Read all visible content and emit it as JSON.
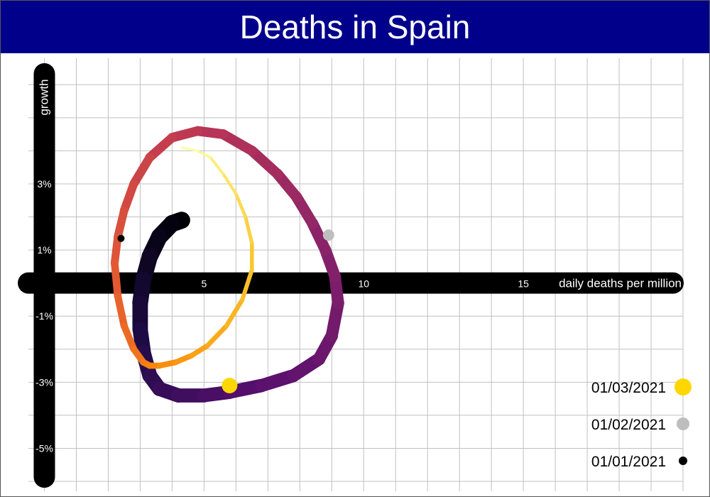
{
  "chart_data": {
    "type": "line",
    "title": "Deaths in Spain",
    "xlabel": "daily deaths per million",
    "ylabel": "growth",
    "xlim": [
      -0.5,
      20
    ],
    "ylim": [
      -6.3,
      6.8
    ],
    "x_ticks": [
      5,
      10,
      15
    ],
    "x_tick_labels": [
      "5",
      "10",
      "15"
    ],
    "y_ticks": [
      3,
      1,
      -1,
      -3,
      -5
    ],
    "y_tick_labels": [
      "3%",
      "1%",
      "-1%",
      "-3%",
      "-5%"
    ],
    "grid": true,
    "series": [
      {
        "x": [
          4.3,
          4.0,
          3.6,
          3.3,
          3.1,
          3.0,
          3.0,
          3.1,
          3.3,
          3.6,
          4.2,
          5.0,
          5.8,
          6.8,
          7.8,
          8.6,
          9.0,
          9.2,
          9.1,
          8.8,
          8.4,
          7.9,
          7.3,
          6.5,
          5.6,
          4.8,
          4.0,
          3.3,
          2.8,
          2.5,
          2.3,
          2.2,
          2.3,
          2.5,
          2.8,
          3.1,
          3.3,
          3.6,
          4.1,
          4.6,
          5.1,
          5.7,
          6.2,
          6.5,
          6.5,
          6.3,
          6.0,
          5.6,
          5.2,
          4.8,
          4.3
        ],
        "y": [
          1.9,
          1.8,
          1.4,
          0.8,
          0.1,
          -0.6,
          -1.4,
          -2.1,
          -2.8,
          -3.2,
          -3.4,
          -3.4,
          -3.3,
          -3.1,
          -2.8,
          -2.3,
          -1.6,
          -0.6,
          0.2,
          1.0,
          1.8,
          2.6,
          3.3,
          4.0,
          4.5,
          4.6,
          4.4,
          3.8,
          3.0,
          2.2,
          1.4,
          0.6,
          -0.4,
          -1.3,
          -2.0,
          -2.4,
          -2.5,
          -2.5,
          -2.4,
          -2.2,
          -1.9,
          -1.3,
          -0.5,
          0.4,
          1.2,
          2.0,
          2.7,
          3.3,
          3.8,
          4.0,
          4.1
        ]
      }
    ],
    "markers": [
      {
        "label": "01/03/2021",
        "x": 5.8,
        "y": -3.1,
        "color": "#ffd700"
      },
      {
        "label": "01/02/2021",
        "x": 8.9,
        "y": 1.45,
        "color": "#bebebe"
      },
      {
        "label": "01/01/2021",
        "x": 2.4,
        "y": 1.35,
        "color": "#000000"
      }
    ],
    "legend_position": "bottom-right",
    "color_scale": "inferno"
  },
  "colors": {
    "title_background": "#00008b",
    "grid": "#c0c0c0",
    "axis": "#000000"
  }
}
